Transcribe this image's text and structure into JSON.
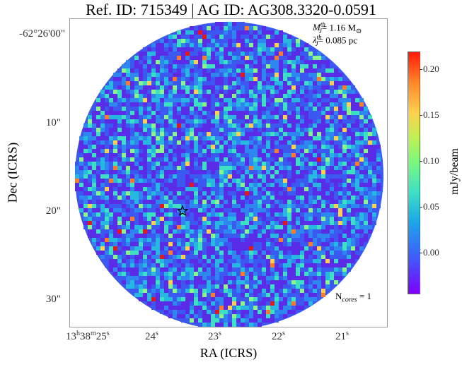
{
  "title": "Ref. ID: 715349 | AG ID: AG308.3320-0.0591",
  "axes": {
    "xlabel": "RA (ICRS)",
    "ylabel": "Dec (ICRS)",
    "y_ticks": [
      "-62°26'00\"",
      "10\"",
      "20\"",
      "30\""
    ],
    "x_ticks": [
      {
        "h": "13",
        "m": "38",
        "s": "25"
      },
      {
        "s": "24"
      },
      {
        "s": "23"
      },
      {
        "s": "22"
      },
      {
        "s": "21"
      }
    ]
  },
  "annotations": {
    "mass_symbol": "M",
    "mass_sup": "th",
    "mass_sub": "J",
    "mass_value": "= 1.16 M",
    "mass_sun": "⊙",
    "jeans_symbol": "λ",
    "jeans_sup": "th",
    "jeans_sub": "J",
    "jeans_value": "= 0.085 pc",
    "ncores_prefix": "N",
    "ncores_sub": "cores",
    "ncores_value": " = 1"
  },
  "colorbar": {
    "label": "mJy/beam",
    "ticks": [
      "0.20",
      "0.15",
      "0.10",
      "0.05",
      "0.00"
    ],
    "tick_values": [
      0.2,
      0.15,
      0.1,
      0.05,
      0.0
    ],
    "range": [
      -0.045,
      0.22
    ],
    "colormap": "rainbow"
  },
  "map": {
    "field": "circular primary beam",
    "noise_colors": [
      "#5a2ce8",
      "#3b58f0",
      "#2e86f0",
      "#26b8e0",
      "#3ee0c4",
      "#8af58a",
      "#ffd050",
      "#ff7a2a",
      "#e01a1a"
    ],
    "mask_color": "#ffffff",
    "cores": [
      {
        "marker": "star",
        "label": "core"
      }
    ]
  }
}
